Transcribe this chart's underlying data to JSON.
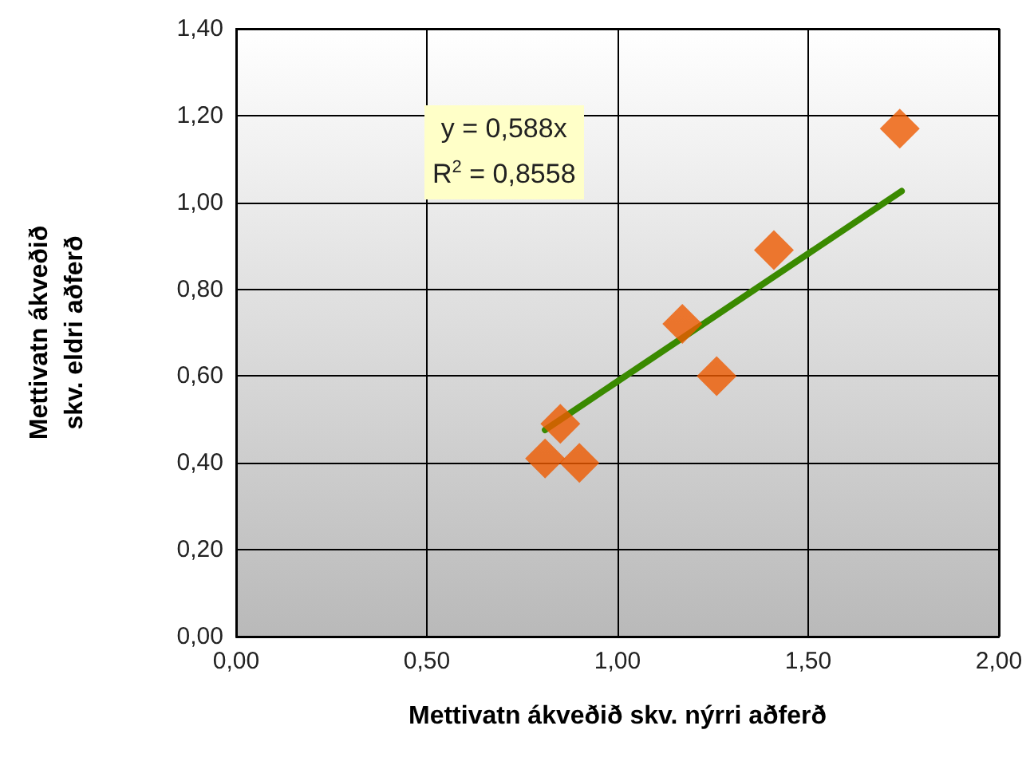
{
  "chart_data": {
    "type": "scatter",
    "xlabel": "Mettivatn ákveðið skv. nýrri aðferð",
    "ylabel": "Mettivatn ákveðið\nskv. eldri aðferð",
    "series": [
      {
        "color": "#ee5a00",
        "marker": "diamond",
        "x": [
          1.74,
          1.41,
          1.17,
          1.26,
          0.85,
          0.81,
          0.9
        ],
        "values": [
          1.17,
          0.89,
          0.72,
          0.6,
          0.49,
          0.41,
          0.4
        ]
      },
      {
        "type": "line",
        "color": "#3a8a00",
        "marker": "none",
        "line_style": "solid",
        "x": [
          0.81,
          1.745
        ],
        "values": [
          0.476,
          1.026
        ]
      }
    ],
    "xlim": [
      0,
      2
    ],
    "xticks": [
      {
        "value": 0,
        "label": "0,00"
      },
      {
        "value": 0.5,
        "label": "0,50"
      },
      {
        "value": 1,
        "label": "1,00"
      },
      {
        "value": 1.5,
        "label": "1,50"
      },
      {
        "value": 2,
        "label": "2,00"
      }
    ],
    "ylim": [
      0,
      1.4
    ],
    "yticks": [
      {
        "value": 0,
        "label": "0,00"
      },
      {
        "value": 0.2,
        "label": "0,20"
      },
      {
        "value": 0.4,
        "label": "0,40"
      },
      {
        "value": 0.6,
        "label": "0,60"
      },
      {
        "value": 0.8,
        "label": "0,80"
      },
      {
        "value": 1,
        "label": "1,00"
      },
      {
        "value": 1.2,
        "label": "1,20"
      },
      {
        "value": 1.4,
        "label": "1,40"
      }
    ],
    "annotations": [
      "y = 0,588x",
      "R$^{2}$ = 0,8558"
    ],
    "grid": true
  }
}
